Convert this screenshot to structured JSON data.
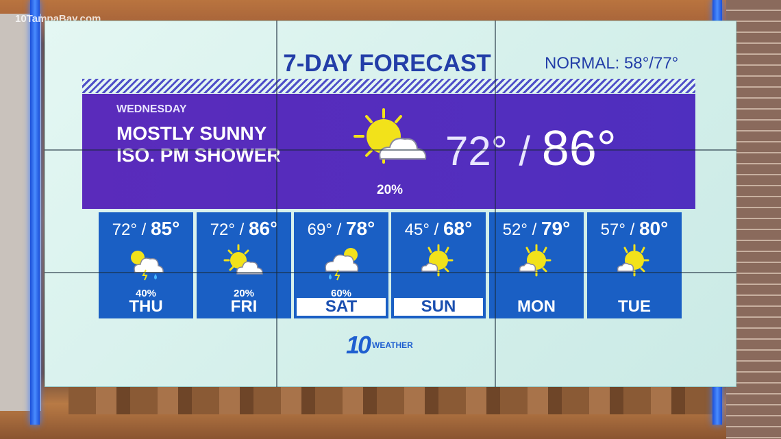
{
  "watermark": "10TampaBay.com",
  "title": "7-DAY FORECAST",
  "normal": "NORMAL: 58°/77°",
  "today": {
    "day": "WEDNESDAY",
    "condition_line1": "MOSTLY SUNNY",
    "condition_line2": "ISO. PM SHOWER",
    "icon": "sun-cloud-icon",
    "precip": "20%",
    "low": "72°",
    "high": "86°"
  },
  "days": [
    {
      "day": "THU",
      "low": "72°",
      "high": "85°",
      "precip": "40%",
      "icon": "sun-cloud-storm-rain-icon",
      "highlight": false
    },
    {
      "day": "FRI",
      "low": "72°",
      "high": "86°",
      "precip": "20%",
      "icon": "sun-cloud-icon",
      "highlight": false
    },
    {
      "day": "SAT",
      "low": "69°",
      "high": "78°",
      "precip": "60%",
      "icon": "cloud-storm-rain-icon",
      "highlight": true
    },
    {
      "day": "SUN",
      "low": "45°",
      "high": "68°",
      "precip": "",
      "icon": "sun-small-cloud-icon",
      "highlight": true
    },
    {
      "day": "MON",
      "low": "52°",
      "high": "79°",
      "precip": "",
      "icon": "sun-small-cloud-icon",
      "highlight": false
    },
    {
      "day": "TUE",
      "low": "57°",
      "high": "80°",
      "precip": "",
      "icon": "sun-small-cloud-icon",
      "highlight": false
    }
  ],
  "logo": {
    "number": "10",
    "text": "WEATHER"
  },
  "colors": {
    "panel": "#5a2bbb",
    "card": "#1a5fc4",
    "title": "#233ea8",
    "sun": "#f2e21a"
  }
}
